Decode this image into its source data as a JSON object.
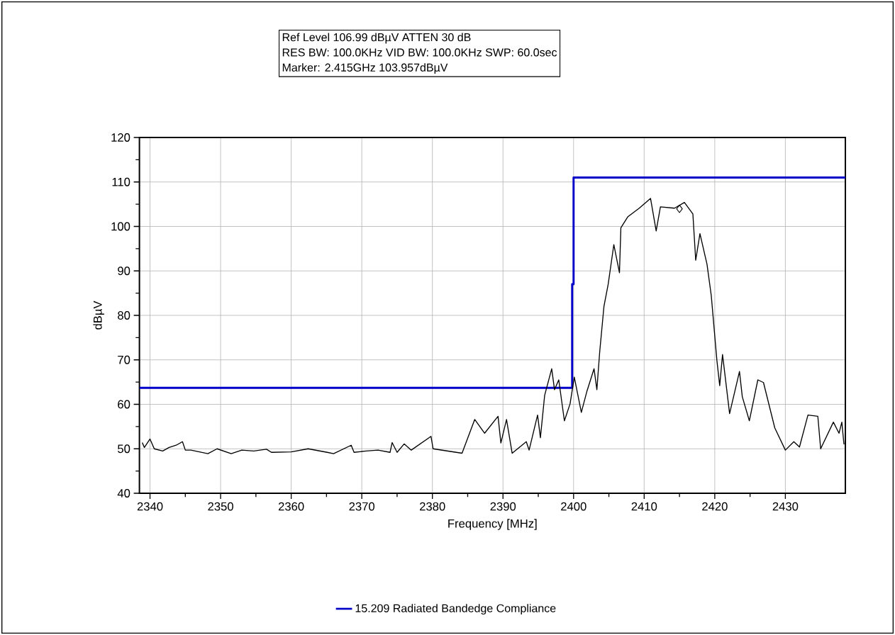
{
  "chart_data": {
    "type": "line",
    "xlabel": "Frequency [MHz]",
    "ylabel": "dBµV",
    "annotations": [
      "Ref Level 106.99 dBµV    ATTEN 30 dB",
      "RES BW: 100.0KHz  VID BW: 100.0KHz  SWP: 60.0sec",
      "Marker: 2.415GHz  103.957dBµV"
    ],
    "xlim": [
      2338.5,
      2438.5
    ],
    "ylim": [
      40,
      120
    ],
    "xticks": [
      2340,
      2350,
      2360,
      2370,
      2380,
      2390,
      2400,
      2410,
      2420,
      2430
    ],
    "yticks": [
      40,
      50,
      60,
      70,
      80,
      90,
      100,
      110,
      120
    ],
    "grid": true,
    "legend": "bottom",
    "series": [
      {
        "name": "15.209 Radiated Bandedge Compliance",
        "color": "#0000c8",
        "x": [
          2338.5,
          2399.8,
          2399.8,
          2400,
          2400,
          2438.5
        ],
        "values": [
          63.7,
          63.7,
          87,
          87,
          111,
          111
        ]
      },
      {
        "color": "#000000",
        "x": [
          2338.9,
          2339.2,
          2340,
          2340.6,
          2341.8,
          2342.7,
          2343.7,
          2344.6,
          2345,
          2345.8,
          2348.2,
          2349.5,
          2351.5,
          2353,
          2354.7,
          2356.5,
          2357.2,
          2360,
          2362.4,
          2365.1,
          2366,
          2368.5,
          2368.9,
          2370.6,
          2372.3,
          2374,
          2374.3,
          2375,
          2376,
          2377,
          2379.8,
          2380.1,
          2384.2,
          2386,
          2387.4,
          2389.3,
          2389.7,
          2390.5,
          2391.3,
          2393.3,
          2393.7,
          2394.9,
          2395.3,
          2395.9,
          2396.9,
          2397.3,
          2397.9,
          2398.7,
          2399.5,
          2400.1,
          2401.1,
          2401.9,
          2402.9,
          2403.3,
          2403.7,
          2404.3,
          2404.9,
          2405.7,
          2406.5,
          2406.7,
          2407.7,
          2409.3,
          2410.9,
          2411.7,
          2412.3,
          2414.3,
          2415.7,
          2416.9,
          2417.3,
          2417.9,
          2418.9,
          2419.5,
          2420.3,
          2420.7,
          2421.1,
          2422.1,
          2423.5,
          2423.9,
          2424.9,
          2426.1,
          2426.9,
          2428.5,
          2430,
          2431.2,
          2432,
          2433.2,
          2434.6,
          2435,
          2436.8,
          2437.6,
          2438,
          2438.3
        ],
        "values": [
          51.4,
          50.3,
          52.2,
          50,
          49.5,
          50.3,
          50.8,
          51.6,
          49.7,
          49.7,
          48.9,
          50,
          48.9,
          49.7,
          49.5,
          49.9,
          49.2,
          49.3,
          50,
          49.2,
          48.9,
          50.8,
          49.2,
          49.5,
          49.7,
          49.2,
          51.4,
          49.2,
          51.1,
          49.7,
          52.8,
          50,
          49,
          56.6,
          53.5,
          57.3,
          51.3,
          56.6,
          49,
          51.6,
          49.7,
          57.6,
          52.5,
          62,
          68,
          63.3,
          65.5,
          56.3,
          60.1,
          66.1,
          58.2,
          63,
          68,
          63.3,
          71.8,
          82,
          87,
          95.9,
          89.6,
          99.7,
          102.2,
          104.1,
          106.3,
          99,
          104.4,
          104.1,
          105.4,
          102.8,
          92.4,
          98.4,
          91.5,
          84.5,
          69.9,
          64.2,
          71.2,
          57.9,
          67.4,
          61.7,
          56.3,
          65.5,
          64.9,
          54.7,
          49.7,
          51.6,
          50.4,
          57.6,
          57.3,
          50,
          56,
          53.5,
          56,
          51
        ]
      },
      {
        "type": "scatter",
        "color": "#000000",
        "marker": "diamond",
        "x": [
          2415
        ],
        "values": [
          103.957
        ]
      }
    ]
  }
}
